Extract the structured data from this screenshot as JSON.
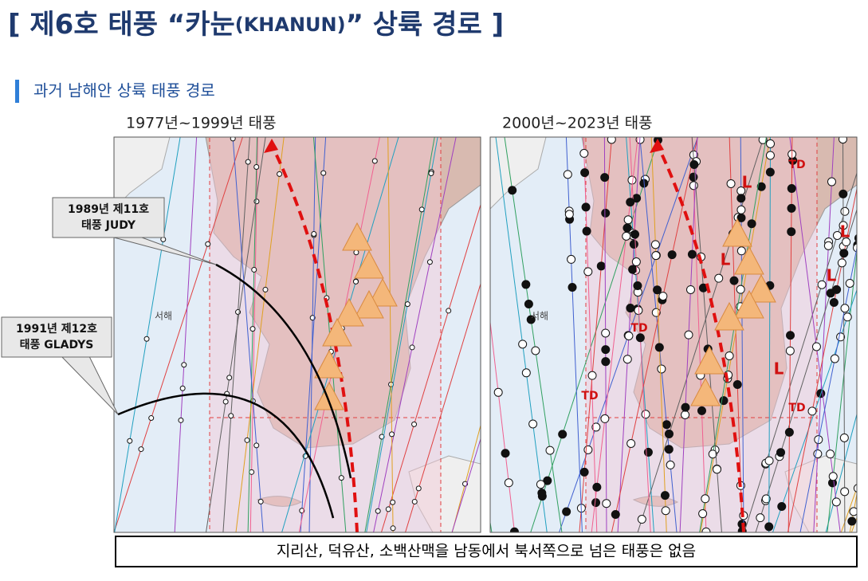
{
  "header": {
    "title": {
      "prefix": "[ 제6호 태풍 “카눈",
      "paren": "(KHANUN)",
      "suffix": "” 상륙 경로 ]"
    },
    "section": "과거 남해안 상륙 태풍 경로"
  },
  "maps": [
    {
      "label": "1977년~1999년 태풍",
      "sea_label": "서해"
    },
    {
      "label": "2000년~2023년 태풍",
      "sea_label": "서해",
      "markers": [
        "TD",
        "TD",
        "TD",
        "TD",
        "L",
        "L",
        "L",
        "L",
        "L"
      ]
    }
  ],
  "callouts": [
    {
      "lines": [
        "1989년 제11호",
        "태풍 JUDY"
      ]
    },
    {
      "lines": [
        "1991년 제12호",
        "태풍 GLADYS"
      ]
    }
  ],
  "footer": {
    "note": "지리산, 덕유산, 소백산맥을 남동에서 북서쪽으로 넘은 태풍은 없음"
  }
}
